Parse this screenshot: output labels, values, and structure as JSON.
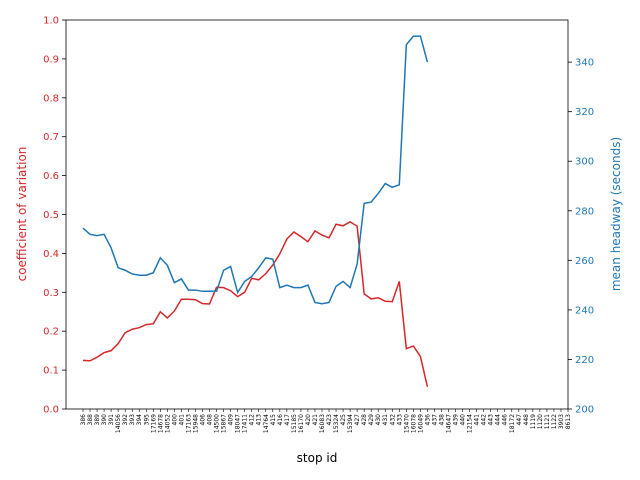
{
  "chart_data": {
    "type": "line",
    "xlabel": "stop id",
    "ylabel": "coefficient of variation",
    "y2label": "mean headway (seconds)",
    "categories": [
      "386",
      "388",
      "389",
      "390",
      "391",
      "14056",
      "392",
      "393",
      "394",
      "395",
      "17169",
      "14678",
      "14052",
      "400",
      "401",
      "17163",
      "15948",
      "406",
      "408",
      "14500",
      "15867",
      "409",
      "18047",
      "17411",
      "412",
      "413",
      "14764",
      "415",
      "416",
      "417",
      "15185",
      "16170",
      "420",
      "421",
      "16083",
      "423",
      "15324",
      "425",
      "15394",
      "427",
      "428",
      "429",
      "430",
      "431",
      "432",
      "433",
      "15470",
      "16078",
      "16049",
      "436",
      "437",
      "438",
      "14647",
      "439",
      "440",
      "12154",
      "441",
      "442",
      "443",
      "444",
      "446",
      "18172",
      "447",
      "448",
      "1119",
      "1120",
      "1121",
      "1122",
      "3903",
      "8613"
    ],
    "series": [
      {
        "name": "coefficient of variation",
        "color": "#d62728",
        "axis": "y",
        "values": [
          0.125,
          0.124,
          0.133,
          0.145,
          0.15,
          0.168,
          0.196,
          0.205,
          0.209,
          0.217,
          0.219,
          0.25,
          0.234,
          0.252,
          0.282,
          0.282,
          0.281,
          0.271,
          0.27,
          0.313,
          0.312,
          0.304,
          0.289,
          0.3,
          0.336,
          0.332,
          0.348,
          0.37,
          0.399,
          0.437,
          0.455,
          0.443,
          0.43,
          0.458,
          0.447,
          0.44,
          0.475,
          0.471,
          0.481,
          0.47,
          0.296,
          0.283,
          0.286,
          0.277,
          0.276,
          0.328,
          0.155,
          0.162,
          0.135,
          0.057,
          null,
          null,
          null,
          null,
          null,
          null,
          null,
          null,
          null,
          null,
          null,
          null,
          null,
          null,
          null,
          null,
          null,
          null,
          null,
          null
        ]
      },
      {
        "name": "mean headway (seconds)",
        "color": "#1f77b4",
        "axis": "y2",
        "values": [
          273,
          270.5,
          270,
          270.5,
          265,
          257,
          256,
          254.5,
          254,
          254,
          255,
          261,
          258,
          251,
          252.5,
          248,
          248,
          247.5,
          247.5,
          247.5,
          256,
          257.5,
          247,
          251.5,
          253.5,
          257,
          261,
          260.5,
          249,
          250,
          249,
          249,
          250,
          243,
          242.5,
          243,
          249.5,
          251.5,
          249,
          258.5,
          283,
          283.5,
          287,
          291,
          289.5,
          290.5,
          347,
          350.5,
          350.5,
          340,
          null,
          null,
          null,
          null,
          null,
          null,
          null,
          null,
          null,
          null,
          null,
          null,
          null,
          null,
          null,
          null,
          null,
          null,
          null,
          null
        ]
      }
    ],
    "ylim": [
      0,
      1
    ],
    "yticks": [
      {
        "value": 0,
        "label": "0.0"
      },
      0.1,
      0.2,
      0.3,
      0.4,
      0.5,
      0.6,
      0.7,
      0.8,
      0.9,
      {
        "value": 1,
        "label": "1.0"
      }
    ],
    "y2lim": [
      200,
      357
    ],
    "y2ticks": [
      200,
      220,
      240,
      260,
      280,
      300,
      320,
      340
    ]
  }
}
